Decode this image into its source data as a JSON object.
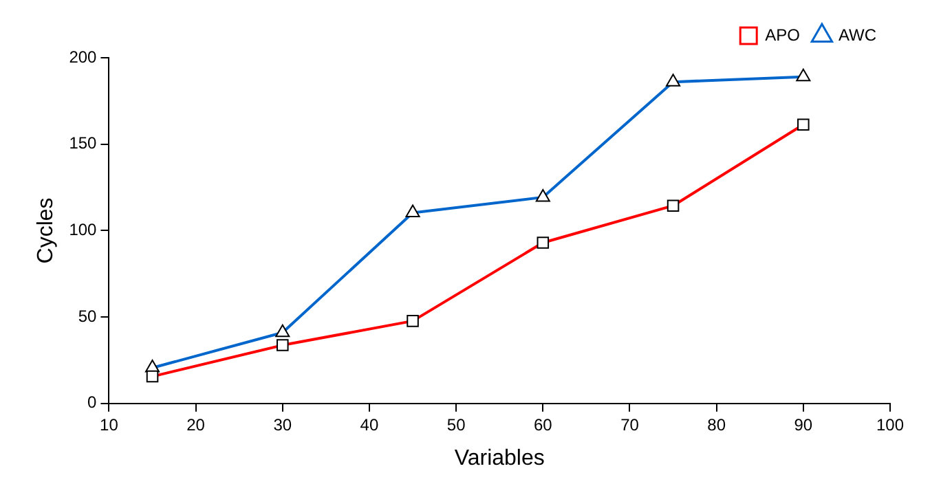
{
  "chart_data": {
    "type": "line",
    "xlabel": "Variables",
    "ylabel": "Cycles",
    "x": [
      15,
      30,
      45,
      60,
      75,
      90
    ],
    "series": [
      {
        "name": "APO",
        "color": "#ff0000",
        "marker": "square",
        "values": [
          15.6,
          33.7,
          47.7,
          93,
          114.4,
          161.3
        ]
      },
      {
        "name": "AWC",
        "color": "#0066cc",
        "marker": "triangle",
        "values": [
          20.6,
          41,
          110.3,
          119.3,
          186,
          189
        ]
      }
    ],
    "xlim": [
      10,
      100
    ],
    "xticks": [
      10,
      20,
      30,
      40,
      50,
      60,
      70,
      80,
      90,
      100
    ],
    "ylim": [
      0,
      200
    ],
    "yticks": [
      0,
      50,
      100,
      150,
      200
    ],
    "grid": false,
    "legend": "top right",
    "line_style": "solid"
  }
}
